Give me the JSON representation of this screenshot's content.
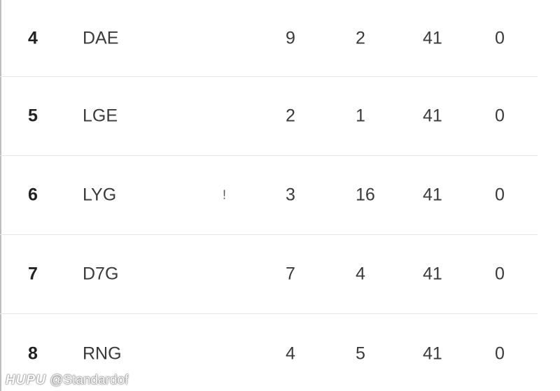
{
  "standings": {
    "rows": [
      {
        "rank": "4",
        "team": "DAE",
        "col1": "9",
        "col2": "2",
        "col3": "41",
        "col4": "0"
      },
      {
        "rank": "5",
        "team": "LGE",
        "col1": "2",
        "col2": "1",
        "col3": "41",
        "col4": "0"
      },
      {
        "rank": "6",
        "team": "LYG",
        "col1": "3",
        "col2": "16",
        "col3": "41",
        "col4": "0",
        "artifact": "!"
      },
      {
        "rank": "7",
        "team": "D7G",
        "col1": "7",
        "col2": "4",
        "col3": "41",
        "col4": "0"
      },
      {
        "rank": "8",
        "team": "RNG",
        "col1": "4",
        "col2": "5",
        "col3": "41",
        "col4": "0"
      }
    ]
  },
  "watermark": {
    "brand": "HUPU",
    "handle": "@Standardof"
  }
}
